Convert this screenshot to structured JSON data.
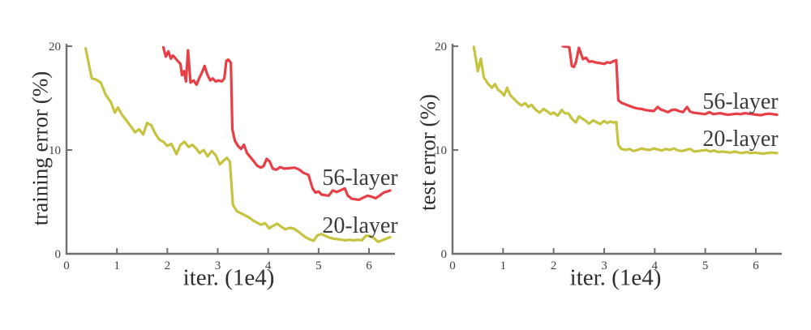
{
  "colors": {
    "axis": "#6f6f6f",
    "text": "#3f3f3f",
    "series_56_layer": "#e83e45",
    "series_20_layer": "#c6c341",
    "background": "#ffffff"
  },
  "chart_data": [
    {
      "type": "line",
      "id": "training-error",
      "title": "",
      "xlabel": "iter. (1e4)",
      "ylabel": "training error (%)",
      "xlim": [
        0,
        6.45
      ],
      "ylim": [
        0,
        20
      ],
      "x_ticks": [
        0,
        1,
        2,
        3,
        4,
        5,
        6
      ],
      "y_ticks": [
        0,
        10,
        20
      ],
      "grid": false,
      "legend_position": "inline-annotations",
      "series": [
        {
          "name": "56-layer",
          "color": "#e83e45",
          "x": [
            1.92,
            1.97,
            2.02,
            2.07,
            2.11,
            2.15,
            2.2,
            2.26,
            2.29,
            2.33,
            2.37,
            2.41,
            2.46,
            2.52,
            2.58,
            2.64,
            2.69,
            2.74,
            2.79,
            2.85,
            2.9,
            2.96,
            3.02,
            3.08,
            3.13,
            3.17,
            3.21,
            3.26,
            3.29,
            3.34,
            3.4,
            3.46,
            3.52,
            3.58,
            3.64,
            3.7,
            3.78,
            3.85,
            3.91,
            3.97,
            4.03,
            4.09,
            4.16,
            4.24,
            4.32,
            4.42,
            4.53,
            4.62,
            4.7,
            4.8,
            4.88,
            4.94,
            5.0,
            5.06,
            5.13,
            5.2,
            5.28,
            5.36,
            5.45,
            5.52,
            5.58,
            5.66,
            5.73,
            5.8,
            5.88,
            5.97,
            6.05,
            6.13,
            6.21,
            6.29,
            6.36,
            6.42
          ],
          "y": [
            19.9,
            19.0,
            19.5,
            18.8,
            19.1,
            18.9,
            18.6,
            18.3,
            17.2,
            17.6,
            16.6,
            19.6,
            16.5,
            16.7,
            16.3,
            17.0,
            17.5,
            18.1,
            17.3,
            16.7,
            16.9,
            16.6,
            16.7,
            16.6,
            16.9,
            18.6,
            18.7,
            18.4,
            12.0,
            10.9,
            10.4,
            10.1,
            10.5,
            9.7,
            9.35,
            9.0,
            8.5,
            8.3,
            8.45,
            9.15,
            8.9,
            8.2,
            8.1,
            8.35,
            8.2,
            8.25,
            8.3,
            8.1,
            7.8,
            7.6,
            6.3,
            5.9,
            6.0,
            5.7,
            5.65,
            5.6,
            6.1,
            5.95,
            6.15,
            6.3,
            5.6,
            5.3,
            5.25,
            5.2,
            5.4,
            5.6,
            5.5,
            5.35,
            5.6,
            5.9,
            6.0,
            6.1
          ]
        },
        {
          "name": "20-layer",
          "color": "#c6c341",
          "x": [
            0.38,
            0.5,
            0.58,
            0.68,
            0.78,
            0.88,
            0.96,
            1.02,
            1.1,
            1.18,
            1.26,
            1.36,
            1.44,
            1.52,
            1.6,
            1.68,
            1.76,
            1.84,
            1.92,
            2.0,
            2.08,
            2.18,
            2.26,
            2.34,
            2.42,
            2.5,
            2.58,
            2.64,
            2.72,
            2.8,
            2.88,
            2.96,
            3.04,
            3.12,
            3.18,
            3.24,
            3.3,
            3.38,
            3.46,
            3.54,
            3.62,
            3.7,
            3.78,
            3.86,
            3.94,
            4.02,
            4.1,
            4.18,
            4.26,
            4.34,
            4.42,
            4.5,
            4.58,
            4.66,
            4.74,
            4.82,
            4.9,
            4.98,
            5.06,
            5.14,
            5.22,
            5.3,
            5.38,
            5.46,
            5.54,
            5.62,
            5.7,
            5.78,
            5.86,
            5.94,
            6.02,
            6.1,
            6.18,
            6.26,
            6.34,
            6.42
          ],
          "y": [
            19.8,
            16.9,
            16.8,
            16.5,
            15.3,
            14.6,
            13.6,
            14.1,
            13.4,
            12.9,
            12.4,
            11.7,
            12.0,
            11.5,
            12.6,
            12.4,
            11.6,
            11.0,
            10.8,
            10.4,
            10.6,
            9.6,
            10.5,
            10.8,
            10.3,
            10.5,
            10.1,
            9.7,
            10.0,
            9.4,
            9.9,
            9.5,
            8.6,
            9.0,
            9.25,
            8.9,
            4.7,
            4.1,
            3.9,
            3.7,
            3.5,
            3.2,
            3.0,
            2.8,
            2.95,
            2.45,
            2.7,
            2.9,
            2.6,
            2.35,
            2.5,
            2.45,
            2.2,
            1.9,
            1.6,
            1.4,
            1.25,
            1.8,
            1.9,
            1.7,
            1.55,
            1.45,
            1.4,
            1.35,
            1.3,
            1.35,
            1.3,
            1.35,
            1.3,
            1.75,
            1.7,
            1.5,
            1.15,
            1.3,
            1.45,
            1.6
          ]
        }
      ],
      "annotations": [
        {
          "text": "56-layer",
          "x": 5.82,
          "y": 7.3
        },
        {
          "text": "20-layer",
          "x": 5.82,
          "y": 2.65
        }
      ]
    },
    {
      "type": "line",
      "id": "test-error",
      "title": "",
      "xlabel": "iter. (1e4)",
      "ylabel": "test error (%)",
      "xlim": [
        0,
        6.45
      ],
      "ylim": [
        0,
        20
      ],
      "x_ticks": [
        0,
        1,
        2,
        3,
        4,
        5,
        6
      ],
      "y_ticks": [
        0,
        10,
        20
      ],
      "grid": false,
      "legend_position": "inline-annotations",
      "series": [
        {
          "name": "56-layer",
          "color": "#e83e45",
          "x": [
            2.18,
            2.26,
            2.31,
            2.36,
            2.4,
            2.44,
            2.5,
            2.54,
            2.58,
            2.64,
            2.7,
            2.76,
            2.82,
            2.88,
            2.94,
            3.0,
            3.06,
            3.12,
            3.18,
            3.24,
            3.28,
            3.34,
            3.42,
            3.5,
            3.58,
            3.66,
            3.74,
            3.82,
            3.9,
            3.98,
            4.06,
            4.12,
            4.18,
            4.26,
            4.34,
            4.4,
            4.48,
            4.56,
            4.64,
            4.7,
            4.76,
            4.84,
            4.92,
            5.0,
            5.08,
            5.16,
            5.22,
            5.3,
            5.38,
            5.46,
            5.54,
            5.62,
            5.7,
            5.78,
            5.86,
            5.94,
            6.02,
            6.1,
            6.18,
            6.26,
            6.34,
            6.42
          ],
          "y": [
            20.0,
            19.95,
            19.9,
            18.1,
            18.0,
            18.45,
            19.85,
            19.3,
            18.75,
            18.9,
            18.5,
            18.55,
            18.45,
            18.4,
            18.35,
            18.3,
            18.45,
            18.4,
            18.55,
            18.65,
            14.8,
            14.55,
            14.4,
            14.25,
            14.1,
            14.0,
            13.95,
            13.85,
            13.8,
            13.75,
            14.15,
            13.9,
            13.8,
            13.65,
            13.85,
            13.9,
            13.75,
            13.65,
            14.15,
            13.7,
            13.6,
            13.55,
            13.5,
            13.45,
            13.65,
            13.45,
            13.5,
            13.55,
            13.45,
            13.4,
            13.45,
            13.5,
            13.45,
            13.55,
            13.5,
            13.45,
            13.4,
            13.35,
            13.45,
            13.5,
            13.45,
            13.4
          ]
        },
        {
          "name": "20-layer",
          "color": "#c6c341",
          "x": [
            0.42,
            0.5,
            0.56,
            0.62,
            0.7,
            0.78,
            0.84,
            0.9,
            0.96,
            1.02,
            1.08,
            1.14,
            1.2,
            1.28,
            1.36,
            1.44,
            1.5,
            1.56,
            1.64,
            1.72,
            1.8,
            1.88,
            1.94,
            2.0,
            2.08,
            2.16,
            2.22,
            2.3,
            2.36,
            2.44,
            2.5,
            2.56,
            2.64,
            2.7,
            2.78,
            2.86,
            2.92,
            3.0,
            3.06,
            3.12,
            3.18,
            3.24,
            3.28,
            3.34,
            3.42,
            3.5,
            3.58,
            3.66,
            3.74,
            3.82,
            3.9,
            3.98,
            4.06,
            4.14,
            4.22,
            4.3,
            4.38,
            4.46,
            4.54,
            4.62,
            4.7,
            4.78,
            4.86,
            4.94,
            5.02,
            5.1,
            5.18,
            5.26,
            5.34,
            5.42,
            5.5,
            5.58,
            5.66,
            5.74,
            5.82,
            5.9,
            5.98,
            6.06,
            6.14,
            6.22,
            6.3,
            6.42
          ],
          "y": [
            19.95,
            17.6,
            18.8,
            17.0,
            16.4,
            16.0,
            16.35,
            15.8,
            15.6,
            15.25,
            16.0,
            15.3,
            15.0,
            14.6,
            14.3,
            14.5,
            14.15,
            14.35,
            13.9,
            13.6,
            13.95,
            13.7,
            13.45,
            13.6,
            13.3,
            13.85,
            13.55,
            13.5,
            13.0,
            12.65,
            13.25,
            13.05,
            12.8,
            12.55,
            12.85,
            12.65,
            12.5,
            12.8,
            12.6,
            12.75,
            12.65,
            12.7,
            10.5,
            10.1,
            10.0,
            10.1,
            9.9,
            10.0,
            10.15,
            10.05,
            10.0,
            10.15,
            10.05,
            9.95,
            10.1,
            10.0,
            10.15,
            9.95,
            9.9,
            10.0,
            10.1,
            9.85,
            9.9,
            9.95,
            10.0,
            9.85,
            9.95,
            9.8,
            9.85,
            9.8,
            9.75,
            9.85,
            9.75,
            9.7,
            9.8,
            9.7,
            9.75,
            9.7,
            9.65,
            9.7,
            9.75,
            9.7
          ]
        }
      ],
      "annotations": [
        {
          "text": "56-layer",
          "x": 5.7,
          "y": 14.6
        },
        {
          "text": "20-layer",
          "x": 5.7,
          "y": 11.05
        }
      ]
    }
  ]
}
